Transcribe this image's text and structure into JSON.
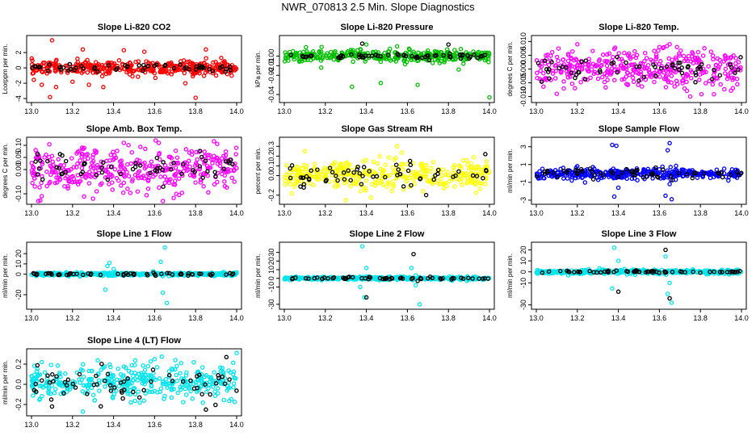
{
  "title": "NWR_070813  2.5 Min. Slope Diagnostics",
  "chart_data": [
    {
      "type": "scatter",
      "title": "Slope Li-820 CO2",
      "xlabel": "",
      "ylabel": "Lcorppm per min.",
      "xlim": [
        13.0,
        14.0
      ],
      "ylim": [
        -4.1,
        3.8
      ],
      "xticks": [
        "13.0",
        "13.2",
        "13.4",
        "13.6",
        "13.8",
        "14.0"
      ],
      "yticks": [
        "-4",
        "-2",
        "0",
        "2"
      ],
      "series": [
        {
          "color": "#ff0000",
          "center": 0,
          "spread": 0.45,
          "outliers": [
            [
              13.1,
              3.6
            ],
            [
              13.09,
              -3.8
            ],
            [
              13.12,
              -2.5
            ],
            [
              13.25,
              2.4
            ],
            [
              13.28,
              -2.2
            ],
            [
              13.35,
              -2.5
            ],
            [
              13.45,
              2.3
            ],
            [
              13.55,
              2.1
            ],
            [
              13.85,
              2.4
            ],
            [
              13.75,
              -2.0
            ],
            [
              13.2,
              -1.8
            ],
            [
              13.05,
              -2.2
            ],
            [
              13.8,
              -3.9
            ]
          ]
        },
        {
          "color": "#000000",
          "center": 0,
          "spread": 0.2,
          "outliers": []
        }
      ]
    },
    {
      "type": "scatter",
      "title": "Slope Li-820 Pressure",
      "xlabel": "",
      "ylabel": "kPa per min.",
      "xlim": [
        13.0,
        14.0
      ],
      "ylim": [
        -0.045,
        0.018
      ],
      "xticks": [
        "13.0",
        "13.2",
        "13.4",
        "13.6",
        "13.8",
        "14.0"
      ],
      "yticks": [
        "-0.04",
        "-0.02",
        "-0.01",
        "0.00"
      ],
      "series": [
        {
          "color": "#00c000",
          "center": 0.0,
          "spread": 0.003,
          "outliers": [
            [
              13.33,
              -0.032
            ],
            [
              13.47,
              -0.028
            ],
            [
              13.65,
              -0.03
            ],
            [
              14.0,
              -0.043
            ],
            [
              13.4,
              0.012
            ],
            [
              13.55,
              0.01
            ],
            [
              13.18,
              -0.012
            ],
            [
              13.85,
              -0.014
            ]
          ]
        },
        {
          "color": "#000000",
          "center": 0.0,
          "spread": 0.0015,
          "outliers": [
            [
              13.38,
              0.013
            ],
            [
              13.8,
              0.012
            ]
          ]
        }
      ]
    },
    {
      "type": "scatter",
      "title": "Slope Li-820 Temp.",
      "xlabel": "",
      "ylabel": "degrees C per min.",
      "xlim": [
        13.0,
        14.0
      ],
      "ylim": [
        -0.011,
        0.011
      ],
      "xticks": [
        "13.0",
        "13.2",
        "13.4",
        "13.6",
        "13.8",
        "14.0"
      ],
      "yticks": [
        "-0.010",
        "-0.005",
        "0.000",
        "0.005",
        "0.010"
      ],
      "series": [
        {
          "color": "#ff00ff",
          "center": 0,
          "spread": 0.0035,
          "outliers": [
            [
              13.2,
              0.009
            ],
            [
              13.6,
              0.008
            ],
            [
              13.1,
              -0.009
            ],
            [
              13.75,
              -0.01
            ],
            [
              13.65,
              0.009
            ]
          ]
        },
        {
          "color": "#000000",
          "center": 0,
          "spread": 0.002,
          "outliers": []
        }
      ]
    },
    {
      "type": "scatter",
      "title": "Slope Amb. Box Temp.",
      "xlabel": "",
      "ylabel": "degrees C per min.",
      "xlim": [
        13.0,
        14.0
      ],
      "ylim": [
        -0.13,
        0.12
      ],
      "xticks": [
        "13.0",
        "13.2",
        "13.4",
        "13.6",
        "13.8",
        "14.0"
      ],
      "yticks": [
        "-0.10",
        "0.00",
        "0.05",
        "0.10"
      ],
      "series": [
        {
          "color": "#ff00ff",
          "center": 0,
          "spread": 0.045,
          "outliers": [
            [
              13.45,
              0.11
            ],
            [
              13.3,
              -0.12
            ],
            [
              13.62,
              0.11
            ],
            [
              13.05,
              -0.11
            ]
          ]
        },
        {
          "color": "#000000",
          "center": 0,
          "spread": 0.035,
          "outliers": []
        }
      ]
    },
    {
      "type": "scatter",
      "title": "Slope Gas Stream RH",
      "xlabel": "",
      "ylabel": "percent per min.",
      "xlim": [
        13.0,
        14.0
      ],
      "ylim": [
        -0.26,
        0.36
      ],
      "xticks": [
        "13.0",
        "13.2",
        "13.4",
        "13.6",
        "13.8",
        "14.0"
      ],
      "yticks": [
        "-0.2",
        "0.0",
        "0.1",
        "0.2",
        "0.3"
      ],
      "series": [
        {
          "color": "#ffff00",
          "center": 0,
          "spread": 0.075,
          "outliers": [
            [
              13.3,
              -0.25
            ],
            [
              13.55,
              0.3
            ],
            [
              13.1,
              0.25
            ]
          ]
        },
        {
          "color": "#000000",
          "center": 0,
          "spread": 0.06,
          "outliers": [
            [
              13.98,
              0.22
            ]
          ]
        }
      ]
    },
    {
      "type": "scatter",
      "title": "Slope Sample Flow",
      "xlabel": "",
      "ylabel": "ml/min per min.",
      "xlim": [
        13.0,
        14.0
      ],
      "ylim": [
        -3.1,
        3.7
      ],
      "xticks": [
        "13.0",
        "13.2",
        "13.4",
        "13.6",
        "13.8",
        "14.0"
      ],
      "yticks": [
        "-3",
        "-1",
        "1",
        "3"
      ],
      "series": [
        {
          "color": "#0000ff",
          "center": 0,
          "spread": 0.3,
          "outliers": [
            [
              13.37,
              3.2
            ],
            [
              13.39,
              3.1
            ],
            [
              13.65,
              3.4
            ],
            [
              13.64,
              2.6
            ],
            [
              13.38,
              -2.6
            ],
            [
              13.66,
              -2.9
            ],
            [
              13.63,
              -2.5
            ],
            [
              13.4,
              -1.6
            ],
            [
              13.65,
              -1.2
            ]
          ]
        },
        {
          "color": "#000000",
          "center": 0,
          "spread": 0.25,
          "outliers": []
        }
      ]
    },
    {
      "type": "scatter",
      "title": "Slope Line 1 Flow",
      "xlabel": "",
      "ylabel": "ml/min per min.",
      "xlim": [
        13.0,
        14.0
      ],
      "ylim": [
        -31,
        28
      ],
      "xticks": [
        "13.0",
        "13.2",
        "13.4",
        "13.6",
        "13.8",
        "14.0"
      ],
      "yticks": [
        "-20",
        "0",
        "10",
        "20"
      ],
      "series": [
        {
          "color": "#00e5ee",
          "center": 0,
          "spread": 0.8,
          "outliers": [
            [
              13.37,
              8
            ],
            [
              13.38,
              11
            ],
            [
              13.36,
              -15
            ],
            [
              13.65,
              26
            ],
            [
              13.64,
              -18
            ],
            [
              13.66,
              -28
            ],
            [
              13.4,
              5
            ],
            [
              13.63,
              12
            ]
          ]
        },
        {
          "color": "#000000",
          "center": 0,
          "spread": 0.6,
          "outliers": []
        }
      ]
    },
    {
      "type": "scatter",
      "title": "Slope Line 2 Flow",
      "xlabel": "",
      "ylabel": "ml/min per min.",
      "xlim": [
        13.0,
        14.0
      ],
      "ylim": [
        -32,
        38
      ],
      "xticks": [
        "13.0",
        "13.2",
        "13.4",
        "13.6",
        "13.8",
        "14.0"
      ],
      "yticks": [
        "-30",
        "-10",
        "0",
        "10",
        "20",
        "30"
      ],
      "series": [
        {
          "color": "#00e5ee",
          "center": 0,
          "spread": 0.9,
          "outliers": [
            [
              13.38,
              37
            ],
            [
              13.39,
              -22
            ],
            [
              13.66,
              -30
            ],
            [
              13.4,
              12
            ],
            [
              13.37,
              -10
            ],
            [
              13.64,
              -8
            ],
            [
              13.62,
              12
            ]
          ]
        },
        {
          "color": "#000000",
          "center": 0,
          "spread": 0.7,
          "outliers": [
            [
              13.4,
              -22
            ],
            [
              13.63,
              28
            ],
            [
              13.65,
              -3
            ]
          ]
        }
      ]
    },
    {
      "type": "scatter",
      "title": "Slope Line 3 Flow",
      "xlabel": "",
      "ylabel": "ml/min per min.",
      "xlim": [
        13.0,
        14.0
      ],
      "ylim": [
        -31,
        24
      ],
      "xticks": [
        "13.0",
        "13.2",
        "13.4",
        "13.6",
        "13.8",
        "14.0"
      ],
      "yticks": [
        "-30",
        "-10",
        "0",
        "10",
        "20"
      ],
      "series": [
        {
          "color": "#00e5ee",
          "center": 0,
          "spread": 1.0,
          "outliers": [
            [
              13.38,
              22
            ],
            [
              13.37,
              -15
            ],
            [
              13.66,
              -28
            ],
            [
              13.64,
              -20
            ],
            [
              13.4,
              10
            ],
            [
              13.63,
              14
            ],
            [
              13.65,
              -10
            ]
          ]
        },
        {
          "color": "#000000",
          "center": 0,
          "spread": 0.6,
          "outliers": [
            [
              13.4,
              -18
            ],
            [
              13.63,
              20
            ],
            [
              13.65,
              -24
            ]
          ]
        }
      ]
    },
    {
      "type": "scatter",
      "title": "Slope Line 4 (LT) Flow",
      "xlabel": "",
      "ylabel": "ml/min per min.",
      "xlim": [
        13.0,
        14.0
      ],
      "ylim": [
        -0.28,
        0.32
      ],
      "xticks": [
        "13.0",
        "13.2",
        "13.4",
        "13.6",
        "13.8",
        "14.0"
      ],
      "yticks": [
        "-0.2",
        "0.0",
        "0.2"
      ],
      "series": [
        {
          "color": "#00e5ee",
          "center": 0.02,
          "spread": 0.085,
          "outliers": [
            [
              14.0,
              0.31
            ],
            [
              13.05,
              0.22
            ],
            [
              13.25,
              -0.27
            ],
            [
              13.6,
              0.25
            ]
          ]
        },
        {
          "color": "#000000",
          "center": 0.0,
          "spread": 0.08,
          "outliers": [
            [
              13.95,
              0.27
            ],
            [
              13.85,
              -0.25
            ],
            [
              13.1,
              -0.22
            ]
          ]
        }
      ]
    }
  ]
}
